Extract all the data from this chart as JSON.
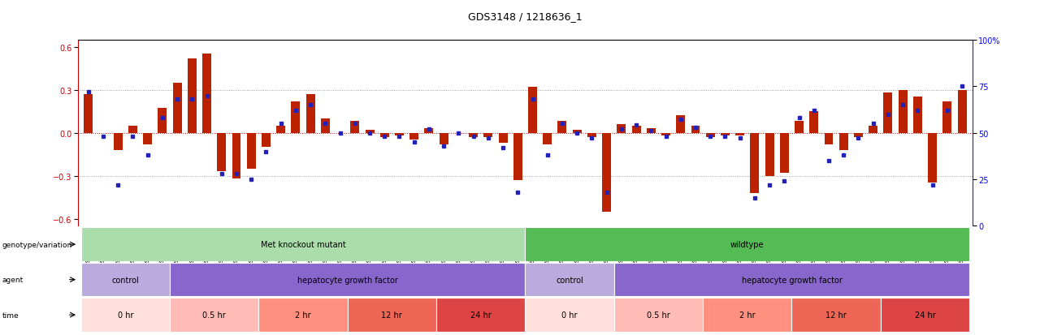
{
  "title": "GDS3148 / 1218636_1",
  "samples": [
    "GSM100050",
    "GSM100052",
    "GSM100065",
    "GSM100066",
    "GSM100067",
    "GSM100068",
    "GSM100088",
    "GSM100089",
    "GSM100090",
    "GSM100091",
    "GSM100092",
    "GSM100093",
    "GSM100051",
    "GSM100053",
    "GSM100106",
    "GSM100107",
    "GSM100108",
    "GSM100109",
    "GSM100075",
    "GSM100076",
    "GSM100077",
    "GSM100078",
    "GSM100079",
    "GSM100080",
    "GSM100059",
    "GSM100060",
    "GSM100084",
    "GSM100085",
    "GSM100086",
    "GSM100087",
    "GSM100054",
    "GSM100055",
    "GSM100061",
    "GSM100062",
    "GSM100063",
    "GSM100064",
    "GSM100094",
    "GSM100095",
    "GSM100096",
    "GSM100097",
    "GSM100098",
    "GSM100099",
    "GSM100100",
    "GSM100101",
    "GSM100102",
    "GSM100103",
    "GSM100104",
    "GSM100105",
    "GSM100069",
    "GSM100070",
    "GSM100071",
    "GSM100072",
    "GSM100073",
    "GSM100074",
    "GSM100056",
    "GSM100057",
    "GSM100058",
    "GSM100081",
    "GSM100082",
    "GSM100083"
  ],
  "log2_values": [
    0.27,
    0.0,
    -0.12,
    0.05,
    -0.08,
    0.17,
    0.35,
    0.52,
    0.55,
    -0.27,
    -0.32,
    -0.25,
    -0.1,
    0.05,
    0.22,
    0.27,
    0.1,
    0.0,
    0.08,
    0.02,
    -0.03,
    -0.02,
    -0.05,
    0.03,
    -0.08,
    0.0,
    -0.03,
    -0.03,
    -0.07,
    -0.33,
    0.32,
    -0.08,
    0.08,
    0.02,
    -0.03,
    -0.55,
    0.06,
    0.05,
    0.03,
    -0.02,
    0.12,
    0.05,
    -0.03,
    -0.02,
    -0.02,
    -0.42,
    -0.3,
    -0.28,
    0.08,
    0.15,
    -0.08,
    -0.12,
    -0.03,
    0.05,
    0.28,
    0.3,
    0.25,
    -0.35,
    0.22,
    0.3
  ],
  "percentile_values": [
    72,
    48,
    22,
    48,
    38,
    58,
    68,
    68,
    70,
    28,
    28,
    25,
    40,
    55,
    62,
    65,
    55,
    50,
    55,
    50,
    48,
    48,
    45,
    52,
    43,
    50,
    48,
    47,
    42,
    18,
    68,
    38,
    55,
    50,
    47,
    18,
    52,
    54,
    51,
    48,
    57,
    53,
    48,
    48,
    47,
    15,
    22,
    24,
    58,
    62,
    35,
    38,
    47,
    55,
    60,
    65,
    62,
    22,
    62,
    75
  ],
  "genotype_groups": [
    {
      "label": "Met knockout mutant",
      "start": 0,
      "end": 29,
      "color": "#AADDAA"
    },
    {
      "label": "wildtype",
      "start": 30,
      "end": 59,
      "color": "#55BB55"
    }
  ],
  "agent_groups": [
    {
      "label": "control",
      "start": 0,
      "end": 5,
      "color": "#BBAADD"
    },
    {
      "label": "hepatocyte growth factor",
      "start": 6,
      "end": 29,
      "color": "#8866CC"
    },
    {
      "label": "control",
      "start": 30,
      "end": 35,
      "color": "#BBAADD"
    },
    {
      "label": "hepatocyte growth factor",
      "start": 36,
      "end": 59,
      "color": "#8866CC"
    }
  ],
  "time_groups": [
    {
      "label": "0 hr",
      "start": 0,
      "end": 5,
      "color": "#FFE0DC"
    },
    {
      "label": "0.5 hr",
      "start": 6,
      "end": 11,
      "color": "#FFBBB5"
    },
    {
      "label": "2 hr",
      "start": 12,
      "end": 17,
      "color": "#FF9080"
    },
    {
      "label": "12 hr",
      "start": 18,
      "end": 23,
      "color": "#EE6655"
    },
    {
      "label": "24 hr",
      "start": 24,
      "end": 29,
      "color": "#DD4444"
    },
    {
      "label": "0 hr",
      "start": 30,
      "end": 35,
      "color": "#FFE0DC"
    },
    {
      "label": "0.5 hr",
      "start": 36,
      "end": 41,
      "color": "#FFBBB5"
    },
    {
      "label": "2 hr",
      "start": 42,
      "end": 47,
      "color": "#FF9080"
    },
    {
      "label": "12 hr",
      "start": 48,
      "end": 53,
      "color": "#EE6655"
    },
    {
      "label": "24 hr",
      "start": 54,
      "end": 59,
      "color": "#DD4444"
    }
  ],
  "bar_color": "#BB2200",
  "dot_color": "#2222BB",
  "ylim": [
    -0.65,
    0.65
  ],
  "yticks": [
    -0.6,
    -0.3,
    0.0,
    0.3,
    0.6
  ],
  "right_yticks": [
    0,
    25,
    50,
    75,
    100
  ],
  "bg_color": "#FFFFFF"
}
